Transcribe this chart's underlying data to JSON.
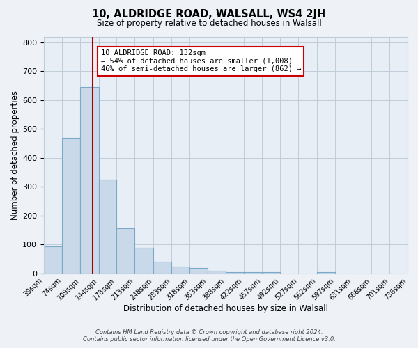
{
  "title": "10, ALDRIDGE ROAD, WALSALL, WS4 2JH",
  "subtitle": "Size of property relative to detached houses in Walsall",
  "xlabel": "Distribution of detached houses by size in Walsall",
  "ylabel": "Number of detached properties",
  "bar_edges": [
    39,
    74,
    109,
    144,
    178,
    213,
    248,
    283,
    318,
    353,
    388,
    422,
    457,
    492,
    527,
    562,
    597,
    631,
    666,
    701,
    736
  ],
  "bar_heights": [
    95,
    470,
    645,
    325,
    157,
    88,
    42,
    25,
    18,
    10,
    5,
    5,
    5,
    0,
    0,
    5,
    0,
    0,
    0,
    0
  ],
  "bar_color": "#c9d9ea",
  "bar_edgecolor": "#7aaac8",
  "property_line_x": 132,
  "property_line_color": "#aa0000",
  "annotation_text": "10 ALDRIDGE ROAD: 132sqm\n← 54% of detached houses are smaller (1,008)\n46% of semi-detached houses are larger (862) →",
  "annotation_box_edgecolor": "#cc0000",
  "annotation_box_facecolor": "#ffffff",
  "ylim": [
    0,
    820
  ],
  "yticks": [
    0,
    100,
    200,
    300,
    400,
    500,
    600,
    700,
    800
  ],
  "footer_line1": "Contains HM Land Registry data © Crown copyright and database right 2024.",
  "footer_line2": "Contains public sector information licensed under the Open Government Licence v3.0.",
  "background_color": "#eef2f7",
  "plot_background": "#e8eef6",
  "grid_color": "#c0ccd8"
}
